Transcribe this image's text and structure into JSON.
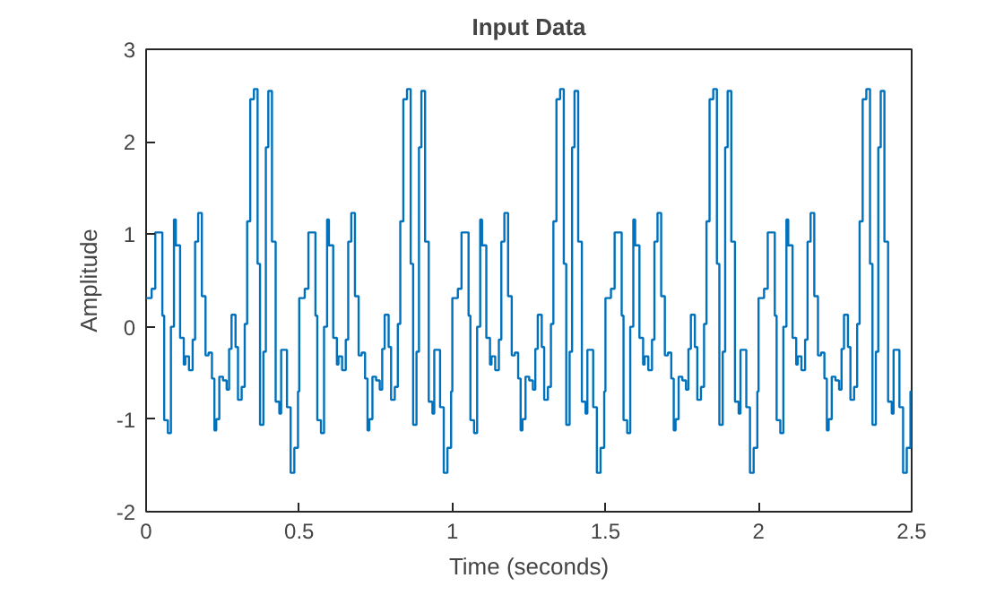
{
  "chart_data": {
    "type": "step",
    "title": "Input Data",
    "xlabel": "Time (seconds)",
    "ylabel": "Amplitude",
    "xlim": [
      0,
      2.5
    ],
    "xticks": [
      0,
      0.5,
      1,
      1.5,
      2,
      2.5
    ],
    "ylim": [
      -2,
      3
    ],
    "yticks": [
      -2,
      -1,
      0,
      1,
      2,
      3
    ],
    "grid": false,
    "marker": "none",
    "line_style": "solid",
    "series": [
      {
        "color": "#0072bd",
        "x": [
          0,
          0.018,
          0.03,
          0.053,
          0.059,
          0.071,
          0.081,
          0.091,
          0.097,
          0.111,
          0.123,
          0.128,
          0.14,
          0.152,
          0.16,
          0.17,
          0.182,
          0.194,
          0.204,
          0.215,
          0.223,
          0.229,
          0.239,
          0.251,
          0.263,
          0.271,
          0.279,
          0.292,
          0.3,
          0.312,
          0.322,
          0.33,
          0.34,
          0.352,
          0.364,
          0.372,
          0.383,
          0.391,
          0.399,
          0.411,
          0.423,
          0.435,
          0.441,
          0.46,
          0.472,
          0.484,
          0.496,
          0.5,
          0.518,
          0.53,
          0.553,
          0.559,
          0.571,
          0.581,
          0.591,
          0.597,
          0.611,
          0.623,
          0.628,
          0.64,
          0.652,
          0.66,
          0.67,
          0.682,
          0.694,
          0.704,
          0.715,
          0.723,
          0.729,
          0.739,
          0.751,
          0.763,
          0.771,
          0.779,
          0.792,
          0.8,
          0.812,
          0.822,
          0.83,
          0.84,
          0.852,
          0.864,
          0.872,
          0.883,
          0.891,
          0.899,
          0.911,
          0.923,
          0.935,
          0.941,
          0.96,
          0.972,
          0.984,
          0.996,
          1.0,
          1.018,
          1.03,
          1.053,
          1.059,
          1.071,
          1.081,
          1.091,
          1.097,
          1.111,
          1.123,
          1.128,
          1.14,
          1.152,
          1.16,
          1.17,
          1.182,
          1.194,
          1.204,
          1.215,
          1.223,
          1.229,
          1.239,
          1.251,
          1.263,
          1.271,
          1.279,
          1.292,
          1.3,
          1.312,
          1.322,
          1.33,
          1.34,
          1.352,
          1.364,
          1.372,
          1.383,
          1.391,
          1.399,
          1.411,
          1.423,
          1.435,
          1.441,
          1.46,
          1.472,
          1.484,
          1.496,
          1.5,
          1.518,
          1.53,
          1.553,
          1.559,
          1.571,
          1.581,
          1.591,
          1.597,
          1.611,
          1.623,
          1.628,
          1.64,
          1.652,
          1.66,
          1.67,
          1.682,
          1.694,
          1.704,
          1.715,
          1.723,
          1.729,
          1.739,
          1.751,
          1.763,
          1.771,
          1.779,
          1.792,
          1.8,
          1.812,
          1.822,
          1.83,
          1.84,
          1.852,
          1.864,
          1.872,
          1.883,
          1.891,
          1.899,
          1.911,
          1.923,
          1.935,
          1.941,
          1.96,
          1.972,
          1.984,
          1.996,
          2.0,
          2.018,
          2.03,
          2.053,
          2.059,
          2.071,
          2.081,
          2.091,
          2.097,
          2.111,
          2.123,
          2.128,
          2.14,
          2.152,
          2.16,
          2.17,
          2.182,
          2.194,
          2.204,
          2.215,
          2.223,
          2.229,
          2.239,
          2.251,
          2.263,
          2.271,
          2.279,
          2.292,
          2.3,
          2.312,
          2.322,
          2.33,
          2.34,
          2.352,
          2.364,
          2.372,
          2.383,
          2.391,
          2.399,
          2.411,
          2.423,
          2.435,
          2.441,
          2.46,
          2.472,
          2.484,
          2.496,
          2.5
        ],
        "values": [
          0.31,
          0.41,
          1.02,
          0.12,
          -1.01,
          -1.15,
          0.0,
          1.16,
          0.88,
          -0.12,
          -0.41,
          -0.32,
          -0.47,
          -0.14,
          0.92,
          1.23,
          0.33,
          -0.31,
          -0.28,
          -0.56,
          -1.12,
          -1.0,
          -0.54,
          -0.58,
          -0.68,
          -0.24,
          0.13,
          -0.22,
          -0.79,
          -0.65,
          0.03,
          1.14,
          2.46,
          2.57,
          0.68,
          -1.06,
          -0.27,
          1.94,
          2.55,
          0.92,
          -0.81,
          -0.94,
          -0.25,
          -0.87,
          -1.58,
          -1.31,
          -0.7,
          0.31,
          0.41,
          1.02,
          0.12,
          -1.01,
          -1.15,
          0.0,
          1.16,
          0.88,
          -0.12,
          -0.41,
          -0.32,
          -0.47,
          -0.14,
          0.92,
          1.23,
          0.33,
          -0.31,
          -0.28,
          -0.56,
          -1.12,
          -1.0,
          -0.54,
          -0.58,
          -0.68,
          -0.24,
          0.13,
          -0.22,
          -0.79,
          -0.65,
          0.03,
          1.14,
          2.46,
          2.57,
          0.68,
          -1.06,
          -0.27,
          1.94,
          2.55,
          0.92,
          -0.81,
          -0.94,
          -0.25,
          -0.87,
          -1.58,
          -1.31,
          -0.7,
          0.31,
          0.41,
          1.02,
          0.12,
          -1.01,
          -1.15,
          0.0,
          1.16,
          0.88,
          -0.12,
          -0.41,
          -0.32,
          -0.47,
          -0.14,
          0.92,
          1.23,
          0.33,
          -0.31,
          -0.28,
          -0.56,
          -1.12,
          -1.0,
          -0.54,
          -0.58,
          -0.68,
          -0.24,
          0.13,
          -0.22,
          -0.79,
          -0.65,
          0.03,
          1.14,
          2.46,
          2.57,
          0.68,
          -1.06,
          -0.27,
          1.94,
          2.55,
          0.92,
          -0.81,
          -0.94,
          -0.25,
          -0.87,
          -1.58,
          -1.31,
          -0.7,
          0.31,
          0.41,
          1.02,
          0.12,
          -1.01,
          -1.15,
          0.0,
          1.16,
          0.88,
          -0.12,
          -0.41,
          -0.32,
          -0.47,
          -0.14,
          0.92,
          1.23,
          0.33,
          -0.31,
          -0.28,
          -0.56,
          -1.12,
          -1.0,
          -0.54,
          -0.58,
          -0.68,
          -0.24,
          0.13,
          -0.22,
          -0.79,
          -0.65,
          0.03,
          1.14,
          2.46,
          2.57,
          0.68,
          -1.06,
          -0.27,
          1.94,
          2.55,
          0.92,
          -0.81,
          -0.94,
          -0.25,
          -0.87,
          -1.58,
          -1.31,
          -0.7,
          0.31,
          0.41,
          1.02,
          0.12,
          -1.01,
          -1.15,
          0.0,
          1.16,
          0.88,
          -0.12,
          -0.41,
          -0.32,
          -0.47,
          -0.14,
          0.92,
          1.23,
          0.33,
          -0.31,
          -0.28,
          -0.56,
          -1.12,
          -1.0,
          -0.54,
          -0.58,
          -0.68,
          -0.24,
          0.13,
          -0.22,
          -0.79,
          -0.65,
          0.03,
          1.14,
          2.46,
          2.57,
          0.68,
          -1.06,
          -0.27,
          1.94,
          2.55,
          0.92,
          -0.81,
          -0.94,
          -0.25,
          -0.87,
          -1.58,
          -1.31,
          -0.7,
          -0.7
        ]
      }
    ]
  }
}
